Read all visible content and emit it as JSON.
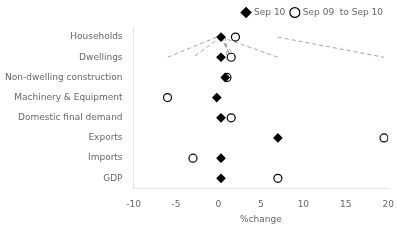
{
  "chart_data": {
    "type": "dumbbell",
    "orientation": "horizontal",
    "categories": [
      "Households",
      "Dwellings",
      "Non-dwelling construction",
      "Machinery & Equipment",
      "Domestic final demand",
      "Exports",
      "Imports",
      "GDP"
    ],
    "series": [
      {
        "name": "Sep 10",
        "color": "#000000",
        "marker": "diamond",
        "values": [
          0.3,
          0.3,
          0.8,
          -0.2,
          0.3,
          7.0,
          0.3,
          0.3
        ]
      },
      {
        "name": "Sep 09  to Sep 10",
        "color": "#000000",
        "marker": "circle",
        "values": [
          2.0,
          1.5,
          1.0,
          -6.0,
          1.5,
          19.5,
          -3.0,
          7.0
        ]
      }
    ],
    "xlabel": "%change",
    "xlim": [
      -10,
      20
    ],
    "xticks": [
      -10,
      -5,
      0,
      5,
      10,
      15,
      20
    ],
    "grid": false,
    "legend": "upper right",
    "line_style": "dashed"
  }
}
